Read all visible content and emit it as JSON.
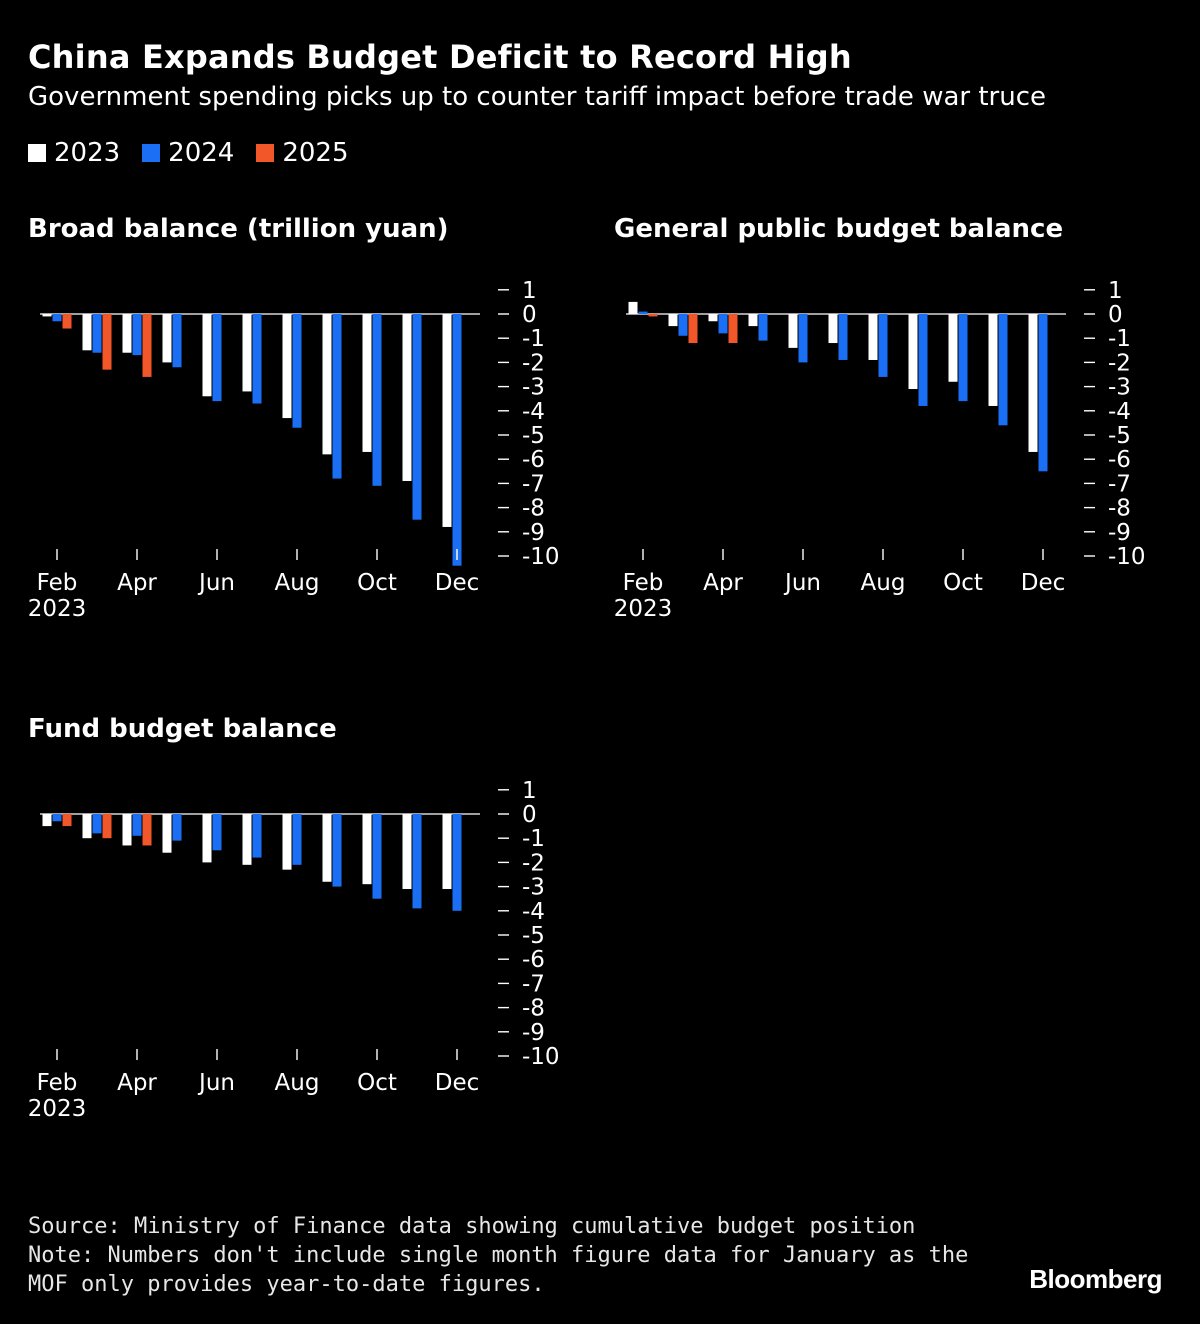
{
  "header": {
    "title": "China Expands Budget Deficit to Record High",
    "subtitle": "Government spending picks up to counter tariff impact before trade war truce"
  },
  "legend": [
    {
      "label": "2023",
      "color": "#ffffff"
    },
    {
      "label": "2024",
      "color": "#1a6ff5"
    },
    {
      "label": "2025",
      "color": "#f2572a"
    }
  ],
  "chart_data": [
    {
      "type": "bar",
      "title": "Broad balance (trillion yuan)",
      "categories": [
        "Feb",
        "Mar",
        "Apr",
        "May",
        "Jun",
        "Jul",
        "Aug",
        "Sep",
        "Oct",
        "Nov",
        "Dec"
      ],
      "x_tick_labels": [
        "Feb",
        "Apr",
        "Jun",
        "Aug",
        "Oct",
        "Dec"
      ],
      "x_year_label": "2023",
      "y_ticks": [
        1,
        0,
        -1,
        -2,
        -3,
        -4,
        -5,
        -6,
        -7,
        -8,
        -9,
        -10
      ],
      "ylim": [
        -10,
        1
      ],
      "series": [
        {
          "name": "2023",
          "values": [
            -0.1,
            -1.5,
            -1.6,
            -2.0,
            -3.4,
            -3.2,
            -4.3,
            -5.8,
            -5.7,
            -6.9,
            -8.8
          ]
        },
        {
          "name": "2024",
          "values": [
            -0.3,
            -1.6,
            -1.7,
            -2.2,
            -3.6,
            -3.7,
            -4.7,
            -6.8,
            -7.1,
            -8.5,
            -10.4
          ]
        },
        {
          "name": "2025",
          "values": [
            -0.6,
            -2.3,
            -2.6,
            null,
            null,
            null,
            null,
            null,
            null,
            null,
            null
          ]
        }
      ]
    },
    {
      "type": "bar",
      "title": "General public budget balance",
      "categories": [
        "Feb",
        "Mar",
        "Apr",
        "May",
        "Jun",
        "Jul",
        "Aug",
        "Sep",
        "Oct",
        "Nov",
        "Dec"
      ],
      "x_tick_labels": [
        "Feb",
        "Apr",
        "Jun",
        "Aug",
        "Oct",
        "Dec"
      ],
      "x_year_label": "2023",
      "y_ticks": [
        1,
        0,
        -1,
        -2,
        -3,
        -4,
        -5,
        -6,
        -7,
        -8,
        -9,
        -10
      ],
      "ylim": [
        -10,
        1
      ],
      "series": [
        {
          "name": "2023",
          "values": [
            0.5,
            -0.5,
            -0.3,
            -0.5,
            -1.4,
            -1.2,
            -1.9,
            -3.1,
            -2.8,
            -3.8,
            -5.7
          ]
        },
        {
          "name": "2024",
          "values": [
            0.1,
            -0.9,
            -0.8,
            -1.1,
            -2.0,
            -1.9,
            -2.6,
            -3.8,
            -3.6,
            -4.6,
            -6.5
          ]
        },
        {
          "name": "2025",
          "values": [
            -0.1,
            -1.2,
            -1.2,
            null,
            null,
            null,
            null,
            null,
            null,
            null,
            null
          ]
        }
      ]
    },
    {
      "type": "bar",
      "title": "Fund budget balance",
      "categories": [
        "Feb",
        "Mar",
        "Apr",
        "May",
        "Jun",
        "Jul",
        "Aug",
        "Sep",
        "Oct",
        "Nov",
        "Dec"
      ],
      "x_tick_labels": [
        "Feb",
        "Apr",
        "Jun",
        "Aug",
        "Oct",
        "Dec"
      ],
      "x_year_label": "2023",
      "y_ticks": [
        1,
        0,
        -1,
        -2,
        -3,
        -4,
        -5,
        -6,
        -7,
        -8,
        -9,
        -10
      ],
      "ylim": [
        -10,
        1
      ],
      "series": [
        {
          "name": "2023",
          "values": [
            -0.5,
            -1.0,
            -1.3,
            -1.6,
            -2.0,
            -2.1,
            -2.3,
            -2.8,
            -2.9,
            -3.1,
            -3.1
          ]
        },
        {
          "name": "2024",
          "values": [
            -0.3,
            -0.8,
            -0.9,
            -1.1,
            -1.5,
            -1.8,
            -2.1,
            -3.0,
            -3.5,
            -3.9,
            -4.0
          ]
        },
        {
          "name": "2025",
          "values": [
            -0.5,
            -1.0,
            -1.3,
            null,
            null,
            null,
            null,
            null,
            null,
            null,
            null
          ]
        }
      ]
    }
  ],
  "footer": {
    "source": "Source: Ministry of Finance data showing cumulative budget position",
    "note_line1": "Note: Numbers don't include single month figure data for January as the",
    "note_line2": "MOF only provides year-to-date figures.",
    "brand": "Bloomberg"
  }
}
